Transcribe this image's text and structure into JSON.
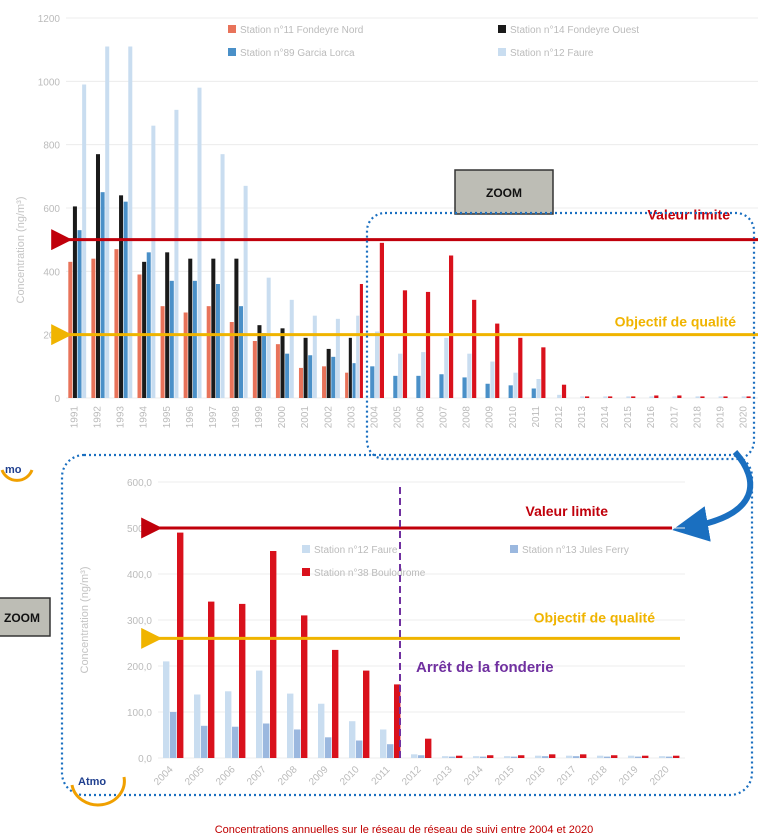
{
  "colors": {
    "station11": "#e8735a",
    "station14": "#1a1a1a",
    "station89": "#4a90c8",
    "station12": "#c9ddf0",
    "station13": "#9bb8df",
    "station38": "#d9111c",
    "limit_line": "#c0000b",
    "objective_line": "#f0b400",
    "zoom_outline": "#1a6fc0",
    "arret_line": "#7030a0"
  },
  "labels": {
    "zoom_top": "ZOOM",
    "zoom_left": "ZOOM",
    "logo_mid": "mo",
    "logo_bottom": "Atmo",
    "caption": "Concentrations annuelles sur le réseau de réseau de suivi entre 2004 et 2020",
    "arret": "Arrêt de la fonderie"
  },
  "chart_data": [
    {
      "type": "bar",
      "ylabel": "Concentration (ng/m³)",
      "ylim": [
        0,
        1200
      ],
      "yticks": [
        "0",
        "200",
        "400",
        "600",
        "800",
        "1000",
        "1200"
      ],
      "categories": [
        "1991",
        "1992",
        "1993",
        "1994",
        "1995",
        "1996",
        "1997",
        "1998",
        "1999",
        "2000",
        "2001",
        "2002",
        "2003",
        "2004",
        "2005",
        "2006",
        "2007",
        "2008",
        "2009",
        "2010",
        "2011",
        "2012",
        "2013",
        "2014",
        "2015",
        "2016",
        "2017",
        "2018",
        "2019",
        "2020"
      ],
      "legend_position": "top-right",
      "series": [
        {
          "name": "Station n°11 Fondeyre Nord",
          "key": "station11",
          "values": [
            430,
            440,
            470,
            390,
            290,
            270,
            290,
            240,
            180,
            170,
            95,
            100,
            80,
            null,
            null,
            null,
            null,
            null,
            null,
            null,
            null,
            null,
            null,
            null,
            null,
            null,
            null,
            null,
            null,
            null
          ]
        },
        {
          "name": "Station n°14 Fondeyre Ouest",
          "key": "station14",
          "values": [
            605,
            770,
            640,
            430,
            460,
            440,
            440,
            440,
            230,
            220,
            190,
            155,
            190,
            null,
            null,
            null,
            null,
            null,
            null,
            null,
            null,
            null,
            null,
            null,
            null,
            null,
            null,
            null,
            null,
            null
          ]
        },
        {
          "name": "Station n°89 Garcia Lorca",
          "key": "station89",
          "values": [
            530,
            650,
            620,
            460,
            370,
            370,
            360,
            290,
            205,
            140,
            135,
            130,
            110,
            100,
            70,
            70,
            75,
            65,
            45,
            40,
            30,
            null,
            null,
            null,
            null,
            null,
            null,
            null,
            null,
            null
          ]
        },
        {
          "name": "Station n°12 Faure",
          "key": "station12",
          "values": [
            990,
            1110,
            1110,
            860,
            910,
            980,
            770,
            670,
            380,
            310,
            260,
            250,
            260,
            210,
            140,
            145,
            190,
            140,
            115,
            80,
            60,
            10,
            5,
            5,
            5,
            5,
            5,
            5,
            5,
            5
          ]
        },
        {
          "name": "",
          "key": "station38",
          "values": [
            null,
            null,
            null,
            null,
            null,
            null,
            null,
            null,
            null,
            null,
            null,
            null,
            360,
            490,
            340,
            335,
            450,
            310,
            235,
            190,
            160,
            42,
            5,
            5,
            5,
            8,
            8,
            5,
            5,
            5
          ]
        }
      ],
      "reference_lines": [
        {
          "label": "Valeur limite",
          "value": 500,
          "key": "limit_line"
        },
        {
          "label": "Objectif de qualité",
          "value": 200,
          "key": "objective_line"
        }
      ]
    },
    {
      "type": "bar",
      "ylabel": "Concentration (ng/m³)",
      "ylim": [
        0,
        600
      ],
      "yticks": [
        "0,0",
        "100,0",
        "200,0",
        "300,0",
        "400,0",
        "500,0",
        "600,0"
      ],
      "categories": [
        "2004",
        "2005",
        "2006",
        "2007",
        "2008",
        "2009",
        "2010",
        "2011",
        "2012",
        "2013",
        "2014",
        "2015",
        "2016",
        "2017",
        "2018",
        "2019",
        "2020"
      ],
      "legend_position": "top-right",
      "series": [
        {
          "name": "Station n°12 Faure",
          "key": "station12",
          "values": [
            210,
            138,
            145,
            190,
            140,
            118,
            80,
            62,
            8,
            4,
            4,
            4,
            5,
            5,
            5,
            5,
            4
          ]
        },
        {
          "name": "Station n°13 Jules Ferry",
          "key": "station13",
          "values": [
            100,
            70,
            68,
            75,
            62,
            45,
            38,
            30,
            6,
            3,
            3,
            3,
            4,
            4,
            3,
            3,
            3
          ]
        },
        {
          "name": "Station n°38 Boulodrome",
          "key": "station38",
          "values": [
            490,
            340,
            335,
            450,
            310,
            235,
            190,
            160,
            42,
            5,
            6,
            6,
            8,
            8,
            6,
            5,
            5
          ]
        }
      ],
      "reference_lines": [
        {
          "label": "Valeur limite",
          "value": 500,
          "key": "limit_line"
        },
        {
          "label": "Objectif de qualité",
          "value": 260,
          "key": "objective_line"
        }
      ]
    }
  ]
}
